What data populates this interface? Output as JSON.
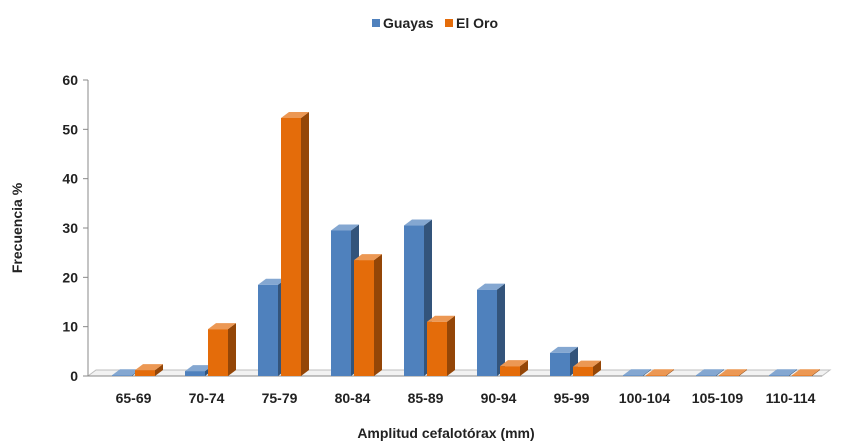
{
  "chart_data": {
    "type": "bar",
    "title": "",
    "xlabel": "Amplitud cefalotórax (mm)",
    "ylabel": "Frecuencia %",
    "ylim": [
      0,
      60
    ],
    "yticks": [
      0,
      10,
      20,
      30,
      40,
      50,
      60
    ],
    "grid": false,
    "legend_position": "top-center",
    "style": "3d-clustered-column",
    "categories": [
      "65-69",
      "70-74",
      "75-79",
      "80-84",
      "85-89",
      "90-94",
      "95-99",
      "100-104",
      "105-109",
      "110-114"
    ],
    "series": [
      {
        "name": "Guayas",
        "color": "#4f81bd",
        "values": [
          0,
          1,
          18.5,
          29.5,
          30.5,
          17.5,
          4.7,
          0,
          0,
          0
        ]
      },
      {
        "name": "El Oro",
        "color": "#e46c0a",
        "values": [
          1.2,
          9.5,
          52.3,
          23.5,
          11,
          2,
          1.9,
          0,
          0,
          0
        ]
      }
    ]
  }
}
